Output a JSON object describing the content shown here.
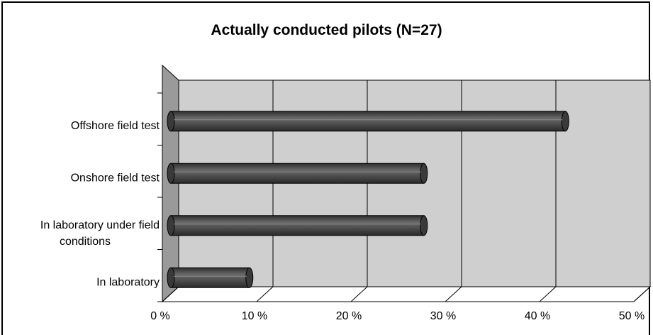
{
  "chart_data": {
    "type": "bar",
    "orientation": "horizontal",
    "title": "Actually conducted pilots (N=27)",
    "categories": [
      "Offshore field test",
      "Onshore field test",
      "In laboratory under field conditions",
      "In laboratory"
    ],
    "category_label_lines": [
      [
        "Offshore field test"
      ],
      [
        "Onshore field test"
      ],
      [
        "In laboratory under field",
        "conditions"
      ],
      [
        "In laboratory"
      ]
    ],
    "values": [
      41,
      26,
      26,
      7.5
    ],
    "unit": "%",
    "xlim": [
      0,
      50
    ],
    "x_ticks": [
      0,
      10,
      20,
      30,
      40,
      50
    ],
    "x_tick_labels": [
      "0 %",
      "10 %",
      "20 %",
      "30 %",
      "40 %",
      "50 %"
    ],
    "grid": true,
    "style": "3d-cylinder",
    "colors": {
      "bar": "#4a4a4a",
      "wall": "#cfcfcf",
      "side": "#9a9a9a",
      "grid": "#000000"
    }
  }
}
